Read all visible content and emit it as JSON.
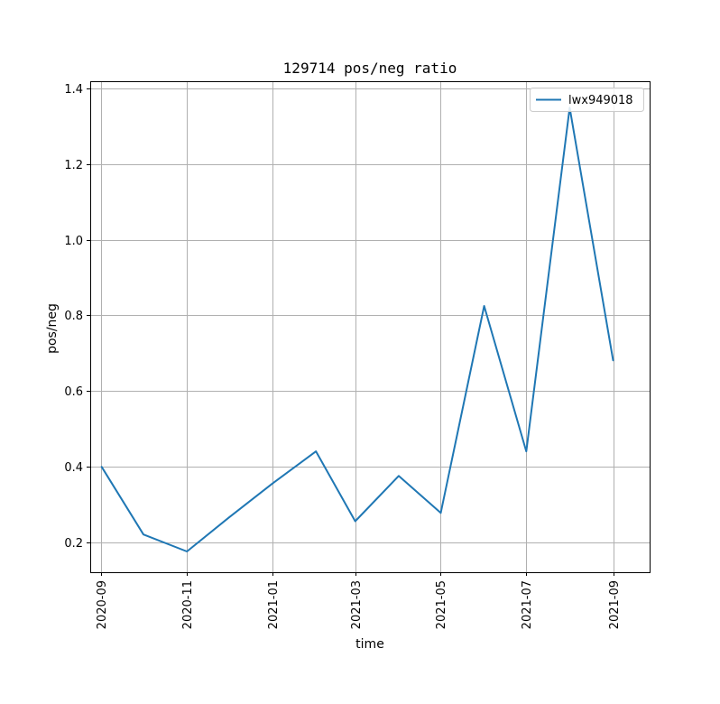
{
  "chart_data": {
    "type": "line",
    "title": "129714 pos/neg ratio",
    "xlabel": "time",
    "ylabel": "pos/neg",
    "x_tick_labels": [
      "2020-09",
      "2020-11",
      "2021-01",
      "2021-03",
      "2021-05",
      "2021-07",
      "2021-09"
    ],
    "y_tick_labels": [
      "0.2",
      "0.4",
      "0.6",
      "0.8",
      "1.0",
      "1.2",
      "1.4"
    ],
    "xlim": [
      "2020-08-24",
      "2021-09-27"
    ],
    "ylim": [
      0.12,
      1.42
    ],
    "grid": true,
    "legend_position": "top-right",
    "series": [
      {
        "name": "lwx949018",
        "color": "#1f77b4",
        "x": [
          "2020-09-01",
          "2020-10-01",
          "2020-11-01",
          "2020-12-01",
          "2021-01-01",
          "2021-02-01",
          "2021-03-01",
          "2021-04-01",
          "2021-05-01",
          "2021-06-01",
          "2021-07-01",
          "2021-08-01",
          "2021-09-01"
        ],
        "y": [
          0.4,
          0.22,
          0.175,
          0.265,
          0.355,
          0.44,
          0.255,
          0.375,
          0.277,
          0.825,
          0.44,
          1.35,
          0.68
        ]
      }
    ]
  }
}
